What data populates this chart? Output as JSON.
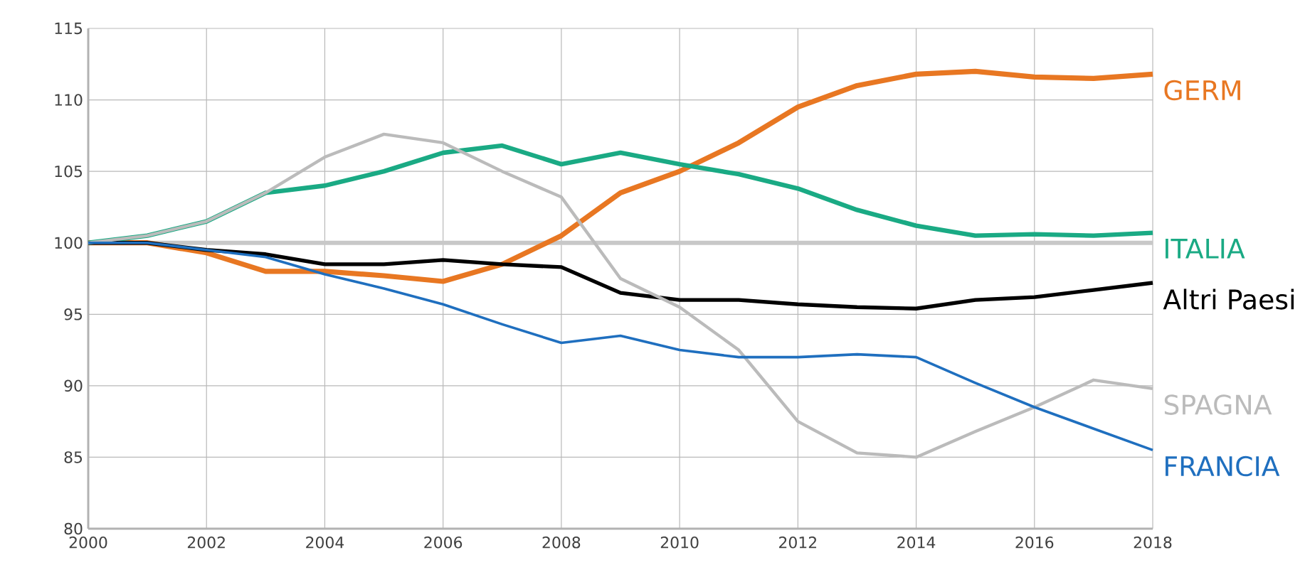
{
  "chart_data": {
    "type": "line",
    "x": [
      2000,
      2001,
      2002,
      2003,
      2004,
      2005,
      2006,
      2007,
      2008,
      2009,
      2010,
      2011,
      2012,
      2013,
      2014,
      2015,
      2016,
      2017,
      2018
    ],
    "series": [
      {
        "name": "GERM",
        "color": "#e87722",
        "values": [
          100,
          100,
          99.3,
          98,
          98,
          97.7,
          97.3,
          98.5,
          100.5,
          103.5,
          105,
          107,
          109.5,
          111,
          111.8,
          112,
          111.6,
          111.5,
          111.8
        ]
      },
      {
        "name": "ITALIA",
        "color": "#1aaa84",
        "values": [
          100,
          100.5,
          101.5,
          103.5,
          104,
          105,
          106.3,
          106.8,
          105.5,
          106.3,
          105.5,
          104.8,
          103.8,
          102.3,
          101.2,
          100.5,
          100.6,
          100.5,
          100.7
        ]
      },
      {
        "name": "Altri Paesi",
        "color": "#000000",
        "values": [
          100,
          100,
          99.5,
          99.2,
          98.5,
          98.5,
          98.8,
          98.5,
          98.3,
          96.5,
          96,
          96,
          95.7,
          95.5,
          95.4,
          96,
          96.2,
          96.7,
          97.2
        ]
      },
      {
        "name": "SPAGNA",
        "color": "#bbbbbb",
        "values": [
          100,
          100.5,
          101.5,
          103.5,
          106,
          107.6,
          107,
          105,
          103.2,
          97.5,
          95.5,
          92.5,
          87.5,
          85.3,
          85,
          86.8,
          88.5,
          90.4,
          89.8
        ]
      },
      {
        "name": "FRANCIA",
        "color": "#1f6fbf",
        "values": [
          100,
          100,
          99.5,
          99,
          97.8,
          96.8,
          95.7,
          94.3,
          93,
          93.5,
          92.5,
          92,
          92,
          92.2,
          92,
          90.2,
          88.5,
          87,
          85.5
        ]
      }
    ],
    "xlim": [
      2000,
      2018
    ],
    "ylim": [
      80,
      115
    ],
    "xticks": [
      2000,
      2002,
      2004,
      2006,
      2008,
      2010,
      2012,
      2014,
      2016,
      2018
    ],
    "yticks": [
      80,
      85,
      90,
      95,
      100,
      105,
      110,
      115
    ],
    "ref_lines": [
      {
        "axis": "y",
        "value": 100,
        "color": "#c8c8c8"
      }
    ],
    "grid": true,
    "legend": false,
    "marker": "none",
    "line_style": "solid"
  }
}
